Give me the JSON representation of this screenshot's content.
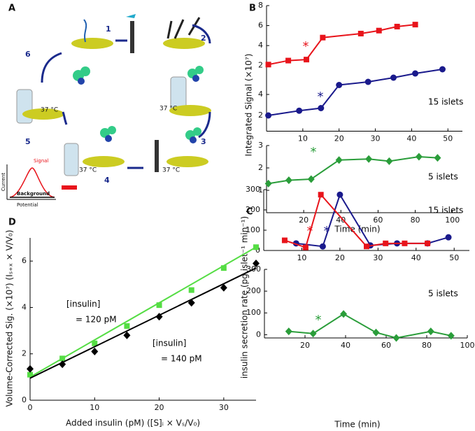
{
  "diagram": {
    "panel": "A",
    "steps": [
      "1",
      "2",
      "3",
      "4",
      "5",
      "6"
    ],
    "temps": [
      "37 °C",
      "37 °C",
      "37 °C",
      "37 °C"
    ],
    "inset": {
      "signal": "Signal",
      "background": "Background",
      "ylabel": "Current",
      "xlabel": "Potential"
    }
  },
  "chart_data": [
    {
      "type": "line",
      "panel": "B",
      "xlim": [
        0,
        54
      ],
      "ylim": [
        1,
        8
      ],
      "yticks": [
        2,
        4,
        6,
        8
      ],
      "series": [
        {
          "color": "#e8141b",
          "marker": "square",
          "x": [
            0.5,
            6,
            11,
            15.5,
            26,
            31,
            36,
            41
          ],
          "values": [
            2.1,
            2.5,
            2.6,
            4.8,
            5.2,
            5.5,
            5.9,
            6.1
          ]
        }
      ],
      "annotations": [
        {
          "text": "*",
          "color": "#e8141b"
        }
      ]
    },
    {
      "type": "line",
      "xlim": [
        0,
        54
      ],
      "xticks": [
        10,
        20,
        30,
        40,
        50
      ],
      "ylim": [
        0.5,
        6.5
      ],
      "yticks": [
        2,
        4
      ],
      "ylabel": "Integrated Signal (×10⁷)",
      "series": [
        {
          "color": "#1a1a8c",
          "marker": "circle",
          "x": [
            0.5,
            9,
            15,
            20,
            28,
            35,
            41,
            48.5
          ],
          "values": [
            2.0,
            2.45,
            2.7,
            4.9,
            5.2,
            5.6,
            6.0,
            6.4
          ]
        }
      ],
      "annotations": [
        {
          "text": "*",
          "color": "#1a1a8c"
        },
        {
          "text": "15 islets",
          "color": "#000000"
        }
      ]
    },
    {
      "type": "line",
      "xlim": [
        0,
        105
      ],
      "xticks": [
        20,
        40,
        60,
        80,
        100
      ],
      "ylim": [
        0,
        3
      ],
      "yticks": [
        1,
        2,
        3
      ],
      "xlabel": "Time (min)",
      "series": [
        {
          "color": "#2a9d3a",
          "marker": "diamond",
          "x": [
            1,
            12,
            24,
            39,
            55,
            66,
            82,
            92
          ],
          "values": [
            1.3,
            1.45,
            1.5,
            2.35,
            2.4,
            2.3,
            2.5,
            2.45
          ]
        }
      ],
      "annotations": [
        {
          "text": "*",
          "color": "#2a9d3a"
        },
        {
          "text": "5 islets",
          "color": "#000000"
        }
      ]
    },
    {
      "type": "line",
      "panel": "C",
      "xlim": [
        0,
        54
      ],
      "xticks": [
        10,
        20,
        30,
        40,
        50
      ],
      "ylim": [
        0,
        300
      ],
      "yticks": [
        0,
        100,
        200,
        300
      ],
      "ylabel": "insulin secretion rate (pg islet⁻¹ min⁻¹)",
      "series": [
        {
          "color": "#1a1a8c",
          "marker": "circle",
          "x": [
            8.5,
            15.5,
            20,
            28,
            35,
            43,
            48.5
          ],
          "values": [
            35,
            20,
            275,
            25,
            35,
            35,
            65
          ]
        },
        {
          "color": "#e8141b",
          "marker": "square",
          "x": [
            5.5,
            11,
            15,
            27,
            32,
            37,
            43
          ],
          "values": [
            50,
            15,
            275,
            20,
            35,
            35,
            35
          ]
        }
      ],
      "annotations": [
        {
          "text": "*",
          "color": "#e8141b"
        },
        {
          "text": "*",
          "color": "#1a1a8c"
        },
        {
          "text": "15 islets",
          "color": "#000000"
        }
      ]
    },
    {
      "type": "line",
      "xlim": [
        0,
        100
      ],
      "xticks": [
        20,
        40,
        60,
        80,
        100
      ],
      "ylim": [
        -15,
        300
      ],
      "yticks": [
        0,
        100,
        200,
        300
      ],
      "xlabel": "Time (min)",
      "series": [
        {
          "color": "#2a9d3a",
          "marker": "diamond",
          "x": [
            12,
            24,
            39,
            55,
            65,
            82,
            92
          ],
          "values": [
            15,
            5,
            95,
            10,
            -15,
            15,
            -5
          ]
        }
      ],
      "annotations": [
        {
          "text": "*",
          "color": "#2a9d3a"
        },
        {
          "text": "5 islets",
          "color": "#000000"
        }
      ]
    },
    {
      "type": "scatter",
      "panel": "D",
      "xlim": [
        0,
        35
      ],
      "xticks": [
        0,
        10,
        20,
        30
      ],
      "ylim": [
        0,
        7
      ],
      "yticks": [
        0,
        2,
        4,
        6
      ],
      "xlabel": "Added insulin (pM)   ([S]ᵢ × Vₛ/V₀)",
      "ylabel": "Volume-Corrected Sig. (×10⁷)   (Iₛ₊ₓ × V/V₀)",
      "series": [
        {
          "color": "#55dd44",
          "marker": "square",
          "x": [
            0,
            5,
            10,
            15,
            20,
            25,
            30,
            35
          ],
          "values": [
            1.1,
            1.8,
            2.45,
            3.2,
            4.1,
            4.75,
            5.7,
            6.6
          ],
          "fit": [
            1.0,
            6.6
          ]
        },
        {
          "color": "#000000",
          "marker": "diamond",
          "x": [
            0,
            5,
            10,
            15,
            20,
            25,
            30,
            35
          ],
          "values": [
            1.35,
            1.55,
            2.1,
            2.8,
            3.6,
            4.2,
            4.85,
            5.9
          ],
          "fit": [
            0.95,
            5.7
          ]
        }
      ],
      "annotations": [
        {
          "text": "[insulin]",
          "color": "#000000"
        },
        {
          "text": "= 120 pM",
          "color": "#000000"
        },
        {
          "text": "[insulin]",
          "color": "#000000"
        },
        {
          "text": "= 140 pM",
          "color": "#000000"
        }
      ]
    }
  ]
}
